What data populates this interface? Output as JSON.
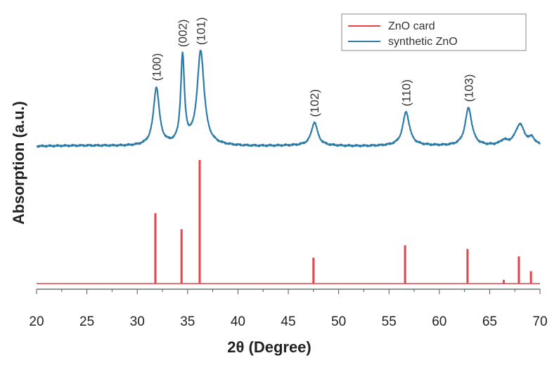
{
  "chart_data": {
    "type": "line",
    "xlabel": "2θ (Degree)",
    "ylabel": "Absorption (a.u.)",
    "xlim": [
      20,
      70
    ],
    "xticks": [
      20,
      25,
      30,
      35,
      40,
      45,
      50,
      55,
      60,
      65,
      70
    ],
    "grid": false,
    "legend": {
      "position": "top-right"
    },
    "series": [
      {
        "name": "ZnO card",
        "color": "#e8414a",
        "style": "stick",
        "baseline": 0,
        "points": [
          [
            31.8,
            0.57
          ],
          [
            34.4,
            0.44
          ],
          [
            36.2,
            1.0
          ],
          [
            47.5,
            0.21
          ],
          [
            56.6,
            0.31
          ],
          [
            62.8,
            0.28
          ],
          [
            66.4,
            0.03
          ],
          [
            67.9,
            0.22
          ],
          [
            69.1,
            0.1
          ]
        ]
      },
      {
        "name": "synthetic ZnO",
        "color": "#2d7ca8",
        "style": "line",
        "baseline": 0,
        "peaks": [
          {
            "x": 31.9,
            "height": 0.55,
            "width": 0.35,
            "label": "(100)"
          },
          {
            "x": 34.5,
            "height": 0.83,
            "width": 0.22,
            "label": "(002)"
          },
          {
            "x": 36.3,
            "height": 0.89,
            "width": 0.42,
            "label": "(101)"
          },
          {
            "x": 47.6,
            "height": 0.22,
            "width": 0.38,
            "label": "(102)"
          },
          {
            "x": 56.7,
            "height": 0.32,
            "width": 0.4,
            "label": "(110)"
          },
          {
            "x": 62.9,
            "height": 0.36,
            "width": 0.4,
            "label": "(103)"
          },
          {
            "x": 66.4,
            "height": 0.04,
            "width": 0.4,
            "label": ""
          },
          {
            "x": 68.0,
            "height": 0.2,
            "width": 0.55,
            "label": ""
          },
          {
            "x": 69.2,
            "height": 0.06,
            "width": 0.3,
            "label": ""
          }
        ]
      }
    ]
  }
}
